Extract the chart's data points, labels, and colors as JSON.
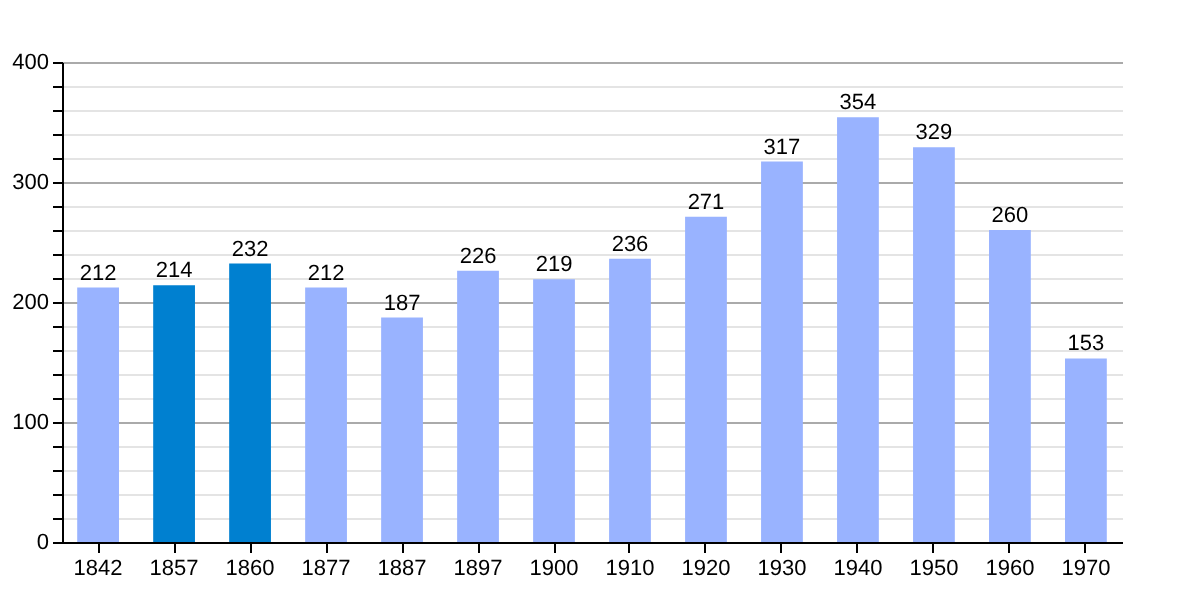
{
  "chart_data": {
    "type": "bar",
    "categories": [
      "1842",
      "1857",
      "1860",
      "1877",
      "1887",
      "1897",
      "1900",
      "1910",
      "1920",
      "1930",
      "1940",
      "1950",
      "1960",
      "1970"
    ],
    "values": [
      212,
      214,
      232,
      212,
      187,
      226,
      219,
      236,
      271,
      317,
      354,
      329,
      260,
      153
    ],
    "colors": [
      "#99b3ff",
      "#0080d0",
      "#0080d0",
      "#99b3ff",
      "#99b3ff",
      "#99b3ff",
      "#99b3ff",
      "#99b3ff",
      "#99b3ff",
      "#99b3ff",
      "#99b3ff",
      "#99b3ff",
      "#99b3ff",
      "#99b3ff"
    ],
    "ylim": [
      0,
      400
    ],
    "yticks": [
      0,
      {
        "value": 20,
        "label": null
      },
      {
        "value": 40,
        "label": null
      },
      {
        "value": 60,
        "label": null
      },
      {
        "value": 80,
        "label": null
      },
      100,
      {
        "value": 120,
        "label": null
      },
      {
        "value": 140,
        "label": null
      },
      {
        "value": 160,
        "label": null
      },
      {
        "value": 180,
        "label": null
      },
      200,
      {
        "value": 220,
        "label": null
      },
      {
        "value": 240,
        "label": null
      },
      {
        "value": 260,
        "label": null
      },
      {
        "value": 280,
        "label": null
      },
      300,
      {
        "value": 320,
        "label": null
      },
      {
        "value": 340,
        "label": null
      },
      {
        "value": 360,
        "label": null
      },
      {
        "value": 380,
        "label": null
      },
      400
    ],
    "grid": "y",
    "data_labels": true
  }
}
